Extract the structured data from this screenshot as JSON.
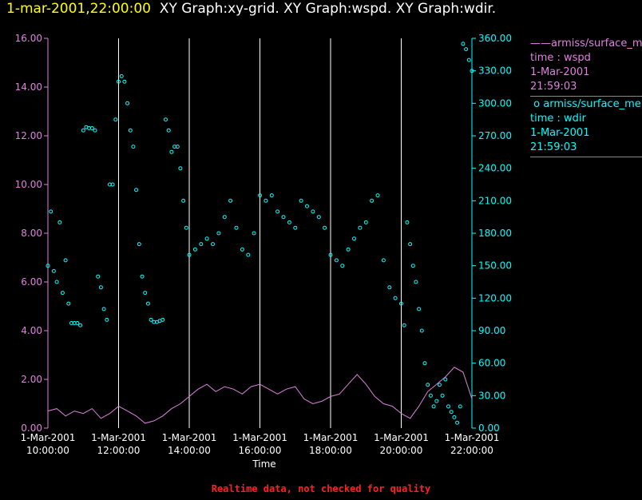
{
  "title": {
    "timestamp": "1-mar-2001,22:00:00",
    "graphs": "XY Graph:xy-grid.  XY Graph:wspd.  XY Graph:wdir."
  },
  "legend": [
    {
      "marker": "——",
      "name": "armiss/surface_me",
      "line2": "time : wspd",
      "line3": "1-Mar-2001",
      "line4": "21:59:03",
      "color": "#e080e0"
    },
    {
      "marker": "o",
      "name": "armiss/surface_me",
      "line2": "time : wdir",
      "line3": "1-Mar-2001",
      "line4": "21:59:03",
      "color": "#00ffff"
    }
  ],
  "footer": "Realtime data, not checked for quality",
  "colors": {
    "left_axis": "#e080e0",
    "right_axis": "#00ffff",
    "grid": "#ffffff",
    "text": "#ffffff"
  },
  "chart_data": {
    "type": "line",
    "xlabel": "Time",
    "xlim": [
      "10:00:00",
      "22:00:00"
    ],
    "x_ticks": [
      {
        "date": "1-Mar-2001",
        "time": "10:00:00"
      },
      {
        "date": "1-Mar-2001",
        "time": "12:00:00"
      },
      {
        "date": "1-Mar-2001",
        "time": "14:00:00"
      },
      {
        "date": "1-Mar-2001",
        "time": "16:00:00"
      },
      {
        "date": "1-Mar-2001",
        "time": "18:00:00"
      },
      {
        "date": "1-Mar-2001",
        "time": "20:00:00"
      },
      {
        "date": "1-Mar-2001",
        "time": "22:00:00"
      }
    ],
    "y_left": {
      "ylim": [
        0,
        16
      ],
      "ticks": [
        "0.00",
        "2.00",
        "4.00",
        "6.00",
        "8.00",
        "10.00",
        "12.00",
        "14.00",
        "16.00"
      ]
    },
    "y_right": {
      "ylim": [
        0,
        360
      ],
      "ticks": [
        "0.00",
        "30.00",
        "60.00",
        "90.00",
        "120.00",
        "150.00",
        "180.00",
        "210.00",
        "240.00",
        "270.00",
        "300.00",
        "330.00",
        "360.00"
      ]
    },
    "grid": "vertical lines at x ticks",
    "series": [
      {
        "name": "armiss/surface_me",
        "type": "line",
        "axis": "left",
        "x": [
          "10:00",
          "10:15",
          "10:30",
          "10:45",
          "11:00",
          "11:15",
          "11:30",
          "11:45",
          "12:00",
          "12:15",
          "12:30",
          "12:45",
          "13:00",
          "13:15",
          "13:30",
          "13:45",
          "14:00",
          "14:15",
          "14:30",
          "14:45",
          "15:00",
          "15:15",
          "15:30",
          "15:45",
          "16:00",
          "16:15",
          "16:30",
          "16:45",
          "17:00",
          "17:15",
          "17:30",
          "17:45",
          "18:00",
          "18:15",
          "18:30",
          "18:45",
          "19:00",
          "19:15",
          "19:30",
          "19:45",
          "20:00",
          "20:15",
          "20:30",
          "20:45",
          "21:00",
          "21:15",
          "21:30",
          "21:45",
          "22:00"
        ],
        "y": [
          0.7,
          0.8,
          0.5,
          0.7,
          0.6,
          0.8,
          0.4,
          0.6,
          0.9,
          0.7,
          0.5,
          0.2,
          0.3,
          0.5,
          0.8,
          1.0,
          1.3,
          1.6,
          1.8,
          1.5,
          1.7,
          1.6,
          1.4,
          1.7,
          1.8,
          1.6,
          1.4,
          1.6,
          1.7,
          1.2,
          1.0,
          1.1,
          1.3,
          1.4,
          1.8,
          2.2,
          1.8,
          1.3,
          1.0,
          0.9,
          0.6,
          0.4,
          0.9,
          1.5,
          1.8,
          2.1,
          2.5,
          2.3,
          1.2
        ]
      },
      {
        "name": "armiss/surface_me",
        "type": "scatter",
        "axis": "right",
        "x": [
          "10:00",
          "10:05",
          "10:10",
          "10:15",
          "10:20",
          "10:25",
          "10:30",
          "10:35",
          "10:40",
          "10:45",
          "10:50",
          "10:55",
          "11:00",
          "11:05",
          "11:10",
          "11:15",
          "11:20",
          "11:25",
          "11:30",
          "11:35",
          "11:40",
          "11:45",
          "11:50",
          "11:55",
          "12:00",
          "12:05",
          "12:10",
          "12:15",
          "12:20",
          "12:25",
          "12:30",
          "12:35",
          "12:40",
          "12:45",
          "12:50",
          "12:55",
          "13:00",
          "13:05",
          "13:10",
          "13:15",
          "13:20",
          "13:25",
          "13:30",
          "13:35",
          "13:40",
          "13:45",
          "13:50",
          "13:55",
          "14:00",
          "14:10",
          "14:20",
          "14:30",
          "14:40",
          "14:50",
          "15:00",
          "15:10",
          "15:20",
          "15:30",
          "15:40",
          "15:50",
          "16:00",
          "16:10",
          "16:20",
          "16:30",
          "16:40",
          "16:50",
          "17:00",
          "17:10",
          "17:20",
          "17:30",
          "17:40",
          "17:50",
          "18:00",
          "18:10",
          "18:20",
          "18:30",
          "18:40",
          "18:50",
          "19:00",
          "19:10",
          "19:20",
          "19:30",
          "19:40",
          "19:50",
          "20:00",
          "20:05",
          "20:10",
          "20:15",
          "20:20",
          "20:25",
          "20:30",
          "20:35",
          "20:40",
          "20:45",
          "20:50",
          "20:55",
          "21:00",
          "21:05",
          "21:10",
          "21:15",
          "21:20",
          "21:25",
          "21:30",
          "21:35",
          "21:40",
          "21:45",
          "21:50",
          "21:55",
          "22:00"
        ],
        "y": [
          150,
          200,
          145,
          135,
          190,
          125,
          155,
          115,
          97,
          97,
          97,
          95,
          275,
          278,
          277,
          277,
          275,
          140,
          130,
          110,
          100,
          225,
          225,
          285,
          320,
          325,
          320,
          300,
          275,
          260,
          220,
          170,
          140,
          125,
          115,
          100,
          98,
          98,
          99,
          100,
          285,
          275,
          255,
          260,
          260,
          240,
          210,
          185,
          160,
          165,
          170,
          175,
          170,
          180,
          195,
          210,
          185,
          165,
          160,
          180,
          215,
          210,
          215,
          200,
          195,
          190,
          185,
          210,
          205,
          200,
          195,
          185,
          160,
          155,
          150,
          165,
          175,
          185,
          190,
          210,
          215,
          155,
          130,
          120,
          115,
          95,
          190,
          170,
          150,
          135,
          110,
          90,
          60,
          40,
          30,
          20,
          25,
          40,
          30,
          45,
          20,
          15,
          10,
          5,
          20,
          355,
          350,
          340,
          330
        ]
      }
    ]
  }
}
